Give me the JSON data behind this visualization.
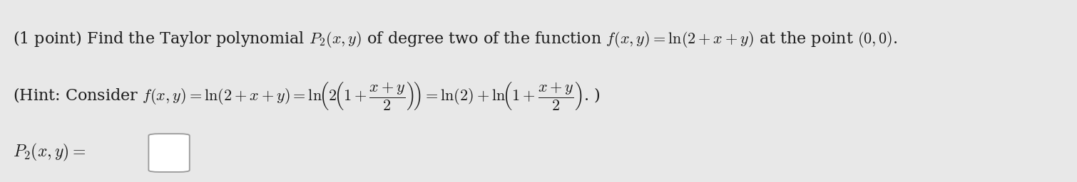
{
  "background_color": "#e8e8e8",
  "line1": "(1 point) Find the Taylor polynomial $P_2(x, y)$ of degree two of the function $f(x, y) = \\mathrm{ln}(2 + x + y)$ at the point $(0, 0)$.",
  "line2": "(Hint: Consider $f(x, y) = \\mathrm{ln}(2 + x + y) = \\mathrm{ln}\\!\\left(2\\!\\left(1 + \\dfrac{x + y}{2}\\right)\\!\\right) = \\mathrm{ln}(2) + \\mathrm{ln}\\!\\left(1 + \\dfrac{x + y}{2}\\right)$. )",
  "line3": "$P_2(x, y) = $",
  "text_color": "#1a1a1a",
  "font_size_line1": 16,
  "font_size_line2": 16,
  "font_size_line3": 17
}
